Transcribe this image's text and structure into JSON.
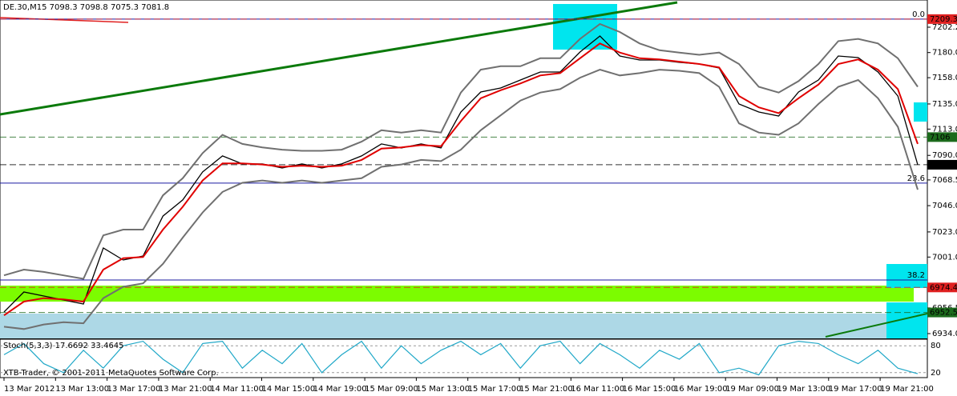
{
  "chart_data": {
    "type": "line",
    "title": "DE.30,M15  7098.3 7098.8 7075.3 7081.8",
    "footer": "XTB-Trader, © 2001-2011 MetaQuotes Software Corp.",
    "ylim": [
      6929.8,
      7226.0
    ],
    "yticks": [
      7202.2,
      {
        "value": 7180.0,
        "label": "7180.0"
      },
      {
        "value": 7158.0,
        "label": "7158.0"
      },
      {
        "value": 7135.0,
        "label": "7135.0"
      },
      {
        "value": 7113.0,
        "label": "7113.0"
      },
      {
        "value": 7090.0,
        "label": "7090.0"
      },
      7068.5,
      {
        "value": 7046.0,
        "label": "7046.0"
      },
      {
        "value": 7023.0,
        "label": "7023.0"
      },
      {
        "value": 7001.0,
        "label": "7001.0"
      },
      6956.5,
      {
        "value": 6934.0,
        "label": "6934.0"
      }
    ],
    "grid": false,
    "time_labels": [
      "13 Mar 2012",
      "13 Mar 13:00",
      "13 Mar 17:00",
      "13 Mar 21:00",
      "14 Mar 11:00",
      "14 Mar 15:00",
      "14 Mar 19:00",
      "15 Mar 09:00",
      "15 Mar 13:00",
      "15 Mar 17:00",
      "15 Mar 21:00",
      "16 Mar 11:00",
      "16 Mar 15:00",
      "16 Mar 19:00",
      "19 Mar 09:00",
      "19 Mar 13:00",
      "19 Mar 17:00",
      "19 Mar 21:00"
    ],
    "series": [
      {
        "name": "Close",
        "color": "#000000",
        "values": [
          6952.9,
          6970.4,
          6966.9,
          6963.4,
          6959.9,
          7008.9,
          6998.4,
          7001.9,
          7036.9,
          7051.0,
          7075.5,
          7089.5,
          7082.5,
          7082.5,
          7079.0,
          7082.5,
          7079.0,
          7082.5,
          7089.5,
          7100.0,
          7096.5,
          7100.0,
          7096.5,
          7128.0,
          7145.5,
          7149.0,
          7156.0,
          7163.0,
          7163.0,
          7180.5,
          7194.5,
          7177.0,
          7173.5,
          7173.5,
          7171.4,
          7170.0,
          7166.5,
          7135.0,
          7128.0,
          7124.5,
          7145.5,
          7156.0,
          7177.0,
          7175.6,
          7163.0,
          7142.0,
          7081.8
        ]
      },
      {
        "name": "MA",
        "color": "#e00000",
        "values": [
          6950,
          6962,
          6965,
          6964,
          6962,
          6990,
          7000,
          7001,
          7025,
          7045,
          7068,
          7083,
          7083,
          7082,
          7080,
          7081,
          7080,
          7081,
          7086,
          7096,
          7097,
          7099,
          7098,
          7120,
          7140,
          7147,
          7153,
          7160,
          7162,
          7175,
          7188,
          7180,
          7175,
          7174,
          7172,
          7170,
          7167,
          7142,
          7132,
          7127,
          7140,
          7152,
          7170,
          7174,
          7165,
          7148,
          7100
        ]
      },
      {
        "name": "Upper",
        "color": "#707070",
        "values": [
          6985,
          6990,
          6988,
          6985,
          6982,
          7020,
          7025,
          7025,
          7055,
          7070,
          7092,
          7108,
          7100,
          7097,
          7095,
          7094,
          7094,
          7095,
          7102,
          7112,
          7110,
          7112,
          7110,
          7145,
          7165,
          7168,
          7168,
          7175,
          7175,
          7192,
          7205,
          7198,
          7188,
          7182,
          7180,
          7178,
          7180,
          7170,
          7150,
          7145,
          7155,
          7170,
          7190,
          7192,
          7188,
          7175,
          7150
        ]
      },
      {
        "name": "Lower",
        "color": "#707070",
        "values": [
          6940,
          6938,
          6942,
          6944,
          6943,
          6965,
          6975,
          6978,
          6995,
          7018,
          7040,
          7058,
          7066,
          7068,
          7066,
          7068,
          7066,
          7068,
          7070,
          7080,
          7082,
          7086,
          7085,
          7095,
          7112,
          7125,
          7138,
          7145,
          7148,
          7158,
          7165,
          7160,
          7162,
          7165,
          7164,
          7162,
          7150,
          7118,
          7110,
          7108,
          7118,
          7135,
          7150,
          7156,
          7140,
          7115,
          7060
        ]
      }
    ],
    "levels": [
      {
        "value": 7209.3,
        "color": "#e02020"
      },
      {
        "value": 7106.0,
        "color": "#1c6b1c"
      },
      {
        "value": 7081.8,
        "color": "#000000"
      },
      {
        "value": 6974.4,
        "color": "#e02020"
      },
      {
        "value": 6952.5,
        "color": "#1c6b1c"
      }
    ],
    "fib": [
      {
        "label": "0.0",
        "value": 7209.3
      },
      {
        "label": "23.6",
        "value": 7065.7
      },
      {
        "label": "38.2",
        "value": 6980.9
      }
    ],
    "stoch": {
      "label": "Stoch(5,3,3) 17.6692 33.4645",
      "color": "#20a8c8",
      "ylim": [
        0,
        100
      ],
      "yticks": [
        80,
        20
      ],
      "values": [
        60,
        85,
        40,
        20,
        70,
        30,
        80,
        90,
        50,
        20,
        85,
        90,
        30,
        70,
        40,
        85,
        20,
        60,
        90,
        30,
        80,
        40,
        70,
        90,
        60,
        85,
        30,
        80,
        90,
        40,
        85,
        60,
        30,
        70,
        50,
        85,
        20,
        30,
        15,
        80,
        90,
        85,
        60,
        40,
        70,
        30,
        17.7
      ]
    }
  }
}
